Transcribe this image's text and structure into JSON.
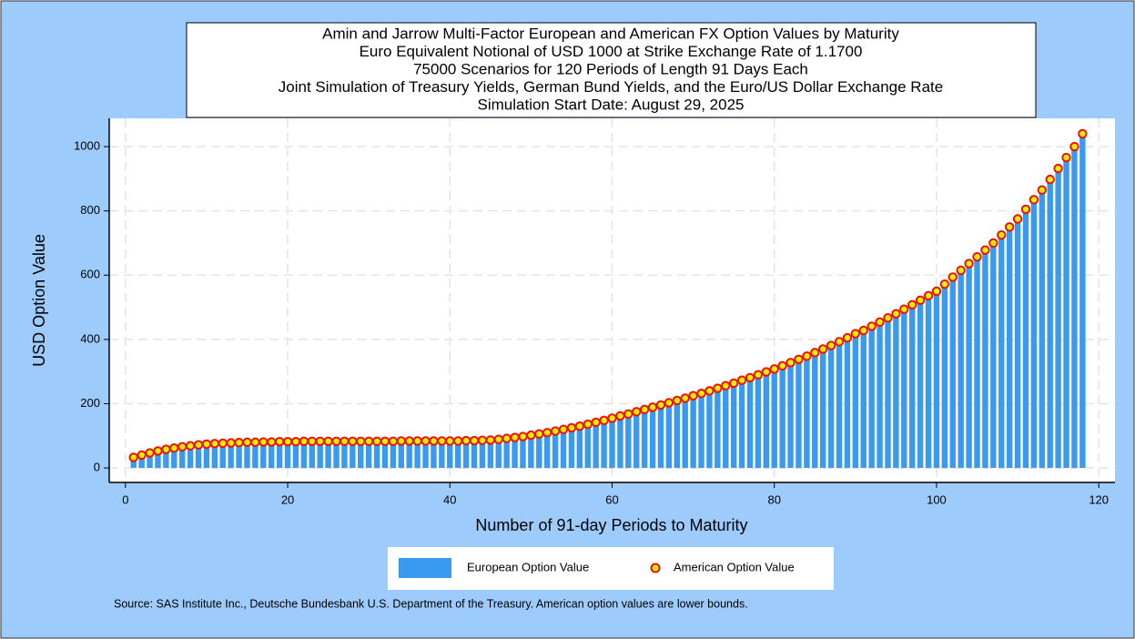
{
  "chart_data": {
    "type": "bar",
    "title": [
      "Amin and Jarrow Multi-Factor European and American FX Option Values by Maturity",
      "Euro Equivalent Notional of USD 1000 at Strike Exchange Rate of  1.1700",
      "75000 Scenarios for 120 Periods of Length 91 Days Each",
      "Joint Simulation of Treasury Yields, German Bund Yields, and the Euro/US Dollar Exchange Rate",
      "Simulation Start Date: August 29, 2025"
    ],
    "x_label": "Number of 91-day Periods to Maturity",
    "y_label": "USD Option Value",
    "source": "Source: SAS Institute Inc., Deutsche Bundesbank U.S. Department of the Treasury. American option values are lower bounds.",
    "x": [
      1,
      2,
      3,
      4,
      5,
      6,
      7,
      8,
      9,
      10,
      11,
      12,
      13,
      14,
      15,
      16,
      17,
      18,
      19,
      20,
      21,
      22,
      23,
      24,
      25,
      26,
      27,
      28,
      29,
      30,
      31,
      32,
      33,
      34,
      35,
      36,
      37,
      38,
      39,
      40,
      41,
      42,
      43,
      44,
      45,
      46,
      47,
      48,
      49,
      50,
      51,
      52,
      53,
      54,
      55,
      56,
      57,
      58,
      59,
      60,
      61,
      62,
      63,
      64,
      65,
      66,
      67,
      68,
      69,
      70,
      71,
      72,
      73,
      74,
      75,
      76,
      77,
      78,
      79,
      80,
      81,
      82,
      83,
      84,
      85,
      86,
      87,
      88,
      89,
      90,
      91,
      92,
      93,
      94,
      95,
      96,
      97,
      98,
      99,
      100,
      101,
      102,
      103,
      104,
      105,
      106,
      107,
      108,
      109,
      110,
      111,
      112,
      113,
      114,
      115,
      116,
      117,
      118
    ],
    "series": [
      {
        "name": "European Option Value",
        "type": "bar",
        "color": "#3a9af0",
        "values": [
          26,
          33,
          40,
          46,
          51,
          55,
          59,
          62,
          65,
          67,
          69,
          70,
          71,
          72,
          73,
          73,
          74,
          74,
          75,
          75,
          75,
          76,
          76,
          76,
          76,
          76,
          76,
          76,
          76,
          76,
          76,
          76,
          76,
          77,
          77,
          77,
          77,
          77,
          77,
          77,
          77,
          78,
          78,
          79,
          80,
          82,
          85,
          88,
          91,
          95,
          99,
          103,
          108,
          113,
          118,
          123,
          129,
          135,
          141,
          148,
          155,
          161,
          168,
          175,
          182,
          189,
          196,
          203,
          210,
          218,
          225,
          233,
          241,
          249,
          257,
          266,
          274,
          283,
          292,
          301,
          311,
          321,
          331,
          341,
          352,
          363,
          374,
          386,
          398,
          411,
          421,
          434,
          447,
          460,
          473,
          487,
          501,
          515,
          529,
          543,
          565,
          587,
          608,
          629,
          650,
          671,
          693,
          718,
          743,
          768,
          798,
          828,
          858,
          891,
          925,
          959,
          993,
          1033
        ]
      },
      {
        "name": "American Option Value",
        "type": "scatter",
        "color": "#ffee00",
        "edge_color": "#ee1100",
        "values": [
          33,
          40,
          47,
          53,
          58,
          62,
          66,
          69,
          72,
          74,
          76,
          77,
          78,
          79,
          80,
          80,
          81,
          81,
          82,
          82,
          82,
          83,
          83,
          83,
          83,
          83,
          83,
          83,
          83,
          83,
          83,
          83,
          83,
          84,
          84,
          84,
          84,
          84,
          84,
          84,
          84,
          85,
          85,
          86,
          87,
          89,
          92,
          95,
          98,
          102,
          106,
          110,
          115,
          120,
          125,
          130,
          136,
          142,
          148,
          155,
          162,
          168,
          175,
          182,
          189,
          196,
          203,
          210,
          217,
          225,
          232,
          240,
          248,
          256,
          264,
          273,
          281,
          290,
          299,
          308,
          318,
          328,
          338,
          348,
          359,
          370,
          381,
          393,
          405,
          418,
          428,
          441,
          454,
          467,
          480,
          494,
          508,
          522,
          536,
          550,
          572,
          594,
          615,
          636,
          657,
          678,
          700,
          725,
          750,
          775,
          805,
          835,
          865,
          898,
          932,
          966,
          1000,
          1040
        ]
      }
    ],
    "xlim": [
      -2,
      122
    ],
    "xticks": [
      0,
      20,
      40,
      60,
      80,
      100,
      120
    ],
    "ylim": [
      -45,
      1088
    ],
    "yticks": [
      0,
      200,
      400,
      600,
      800,
      1000
    ],
    "grid": true,
    "legend_position": "bottom"
  }
}
